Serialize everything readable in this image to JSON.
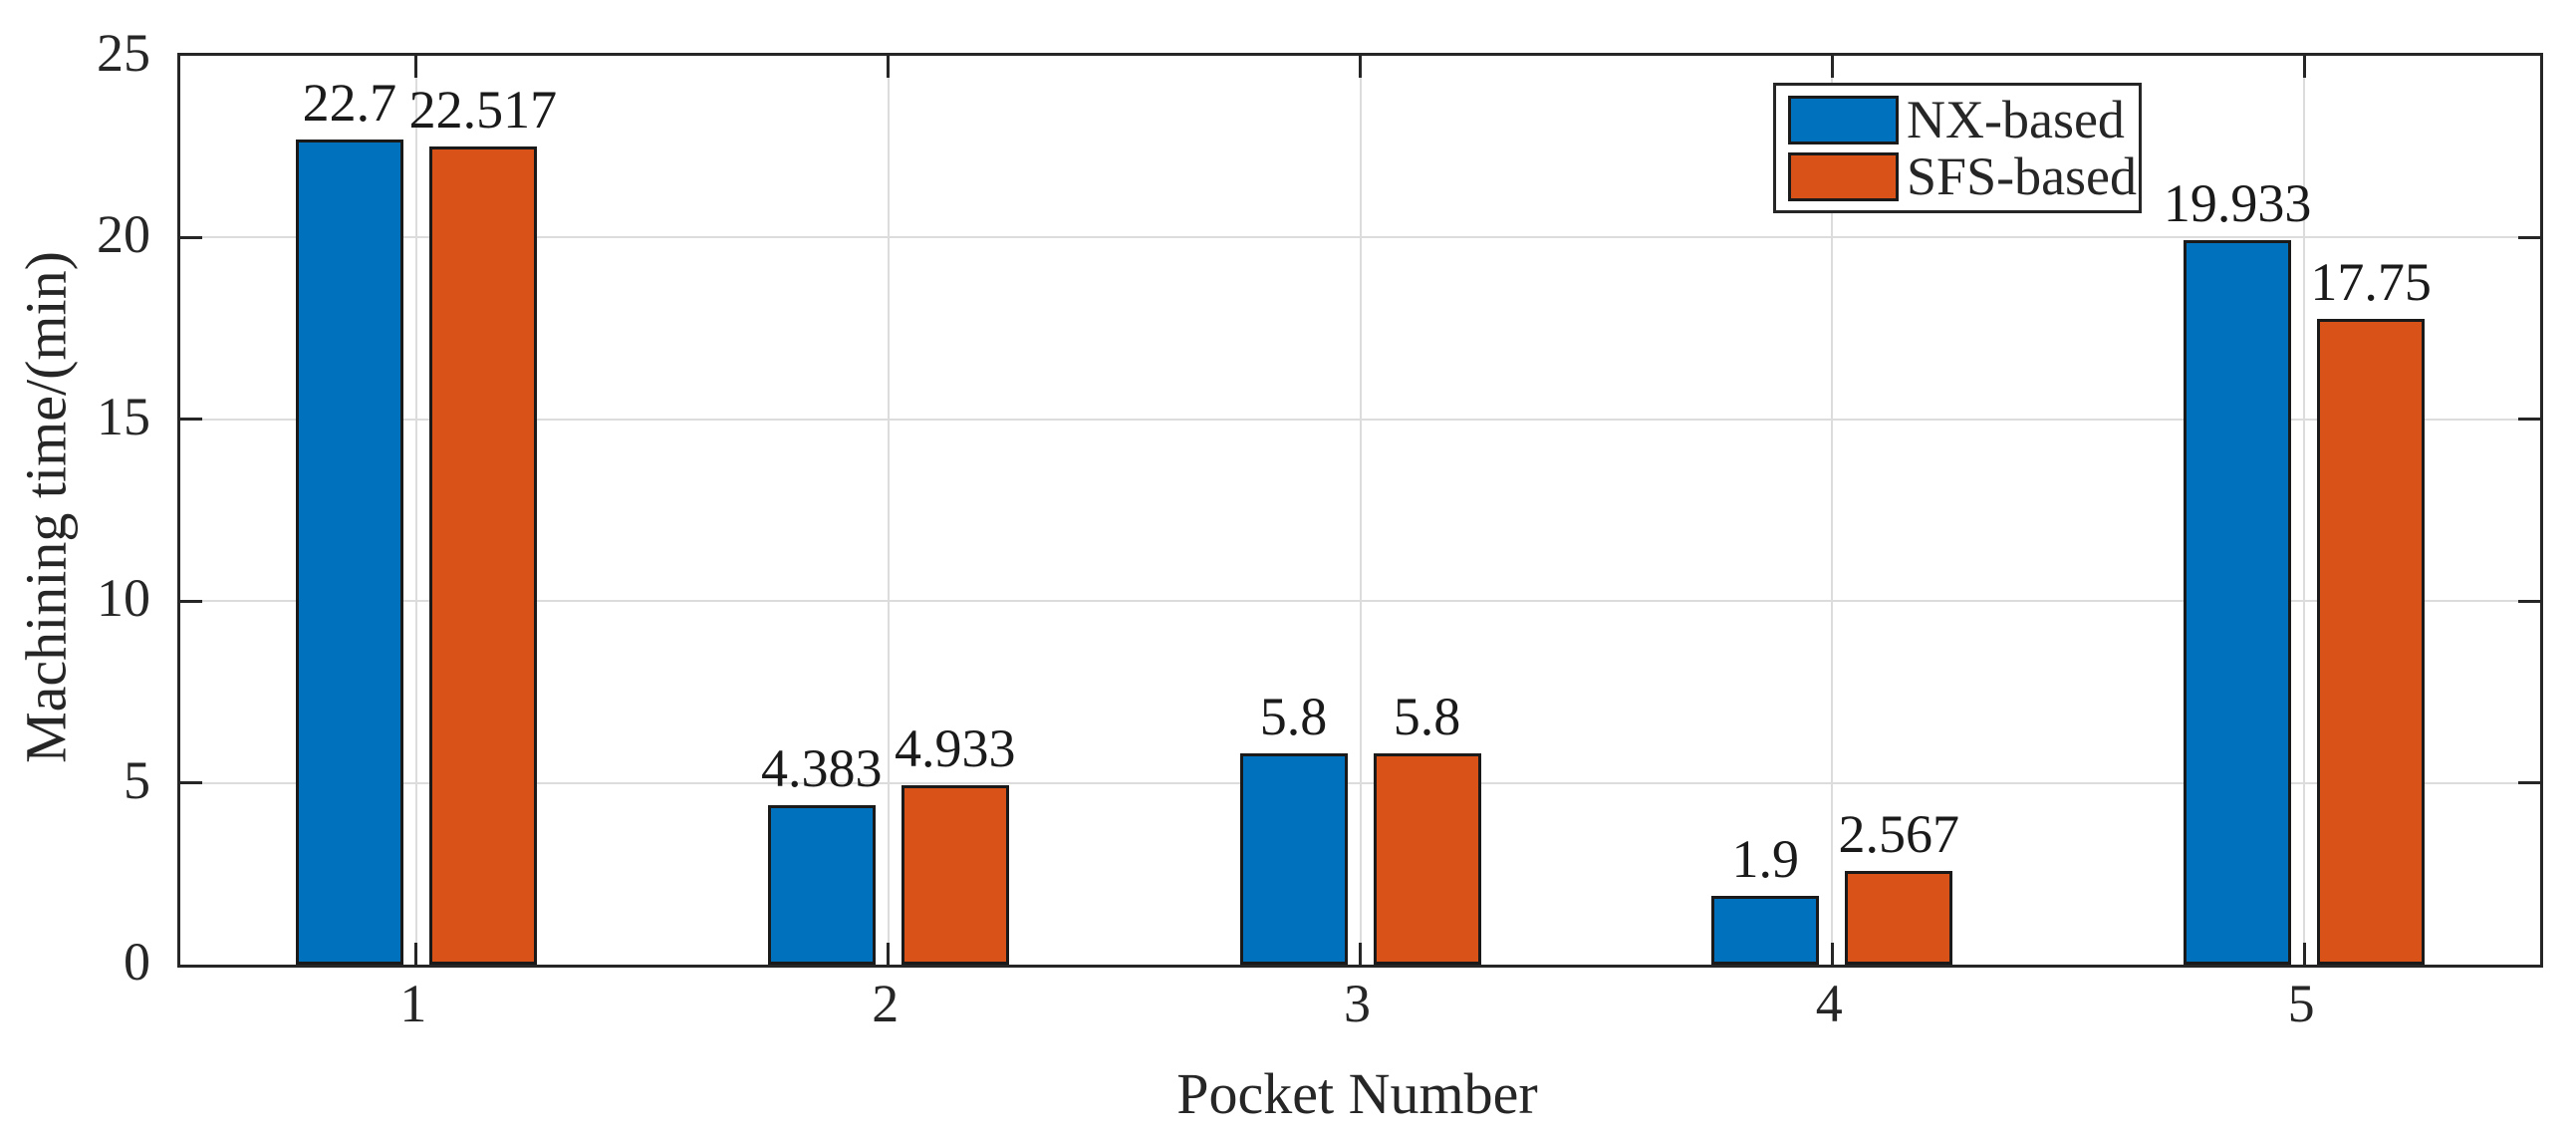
{
  "figure": {
    "background": "#ffffff",
    "axis_color": "#262626",
    "grid_color": "#dcdcdc",
    "bar_edge_color": "#1a1a1a"
  },
  "chart_data": {
    "type": "bar",
    "title": "",
    "xlabel": "Pocket Number",
    "ylabel": "Machining time/(min)",
    "categories": [
      "1",
      "2",
      "3",
      "4",
      "5"
    ],
    "series": [
      {
        "name": "NX-based",
        "color": "#0072BD",
        "values": [
          22.7,
          4.383,
          5.8,
          1.9,
          19.933
        ],
        "value_labels": [
          "22.7",
          "4.383",
          "5.8",
          "1.9",
          "19.933"
        ]
      },
      {
        "name": "SFS-based",
        "color": "#D95319",
        "values": [
          22.517,
          4.933,
          5.8,
          2.567,
          17.75
        ],
        "value_labels": [
          "22.517",
          "4.933",
          "5.8",
          "2.567",
          "17.75"
        ]
      }
    ],
    "ylim": [
      0,
      25
    ],
    "yticks": [
      {
        "value": 0,
        "label": "0"
      },
      {
        "value": 5,
        "label": "5"
      },
      {
        "value": 10,
        "label": "10"
      },
      {
        "value": 15,
        "label": "15"
      },
      {
        "value": 20,
        "label": "20"
      },
      {
        "value": 25,
        "label": "25"
      }
    ],
    "grid": true,
    "legend": {
      "position": "upper-right-inside",
      "entries": [
        "NX-based",
        "SFS-based"
      ]
    }
  }
}
